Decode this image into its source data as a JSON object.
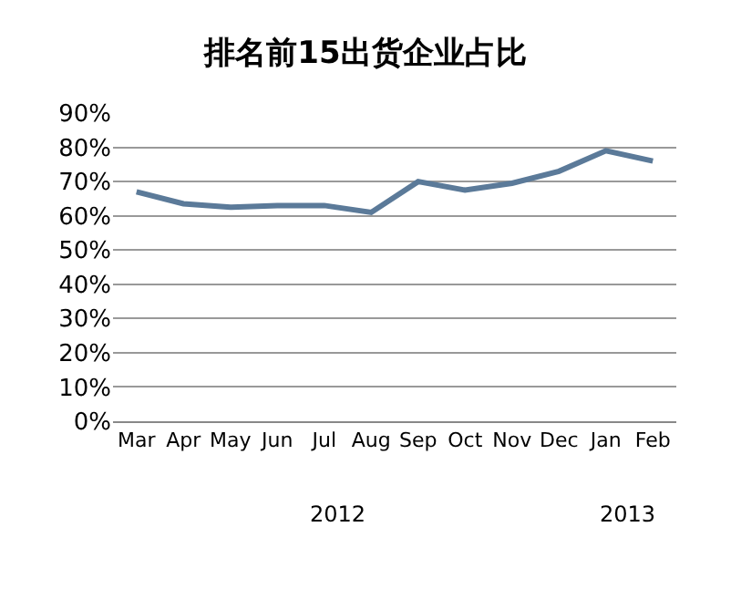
{
  "chart_data": {
    "type": "line",
    "title": "排名前15出货企业占比",
    "categories": [
      "Mar",
      "Apr",
      "May",
      "Jun",
      "Jul",
      "Aug",
      "Sep",
      "Oct",
      "Nov",
      "Dec",
      "Jan",
      "Feb"
    ],
    "series": [
      {
        "color": "#5b7a99",
        "values": [
          67,
          63.5,
          62.5,
          63,
          63,
          61,
          70,
          67.5,
          69.5,
          73,
          79,
          76
        ]
      }
    ],
    "ylim": [
      0,
      90
    ],
    "yticks": [
      {
        "value": 0,
        "label": "0%"
      },
      {
        "value": 10,
        "label": "10%"
      },
      {
        "value": 20,
        "label": "20%"
      },
      {
        "value": 30,
        "label": "30%"
      },
      {
        "value": 40,
        "label": "40%"
      },
      {
        "value": 50,
        "label": "50%"
      },
      {
        "value": 60,
        "label": "60%"
      },
      {
        "value": 70,
        "label": "70%"
      },
      {
        "value": 80,
        "label": "80%"
      },
      {
        "value": 90,
        "label": "90%"
      }
    ],
    "grid": "y",
    "legend": false,
    "marker": "none",
    "line_style": "solid",
    "annotations": [
      "2012",
      "2013"
    ]
  }
}
